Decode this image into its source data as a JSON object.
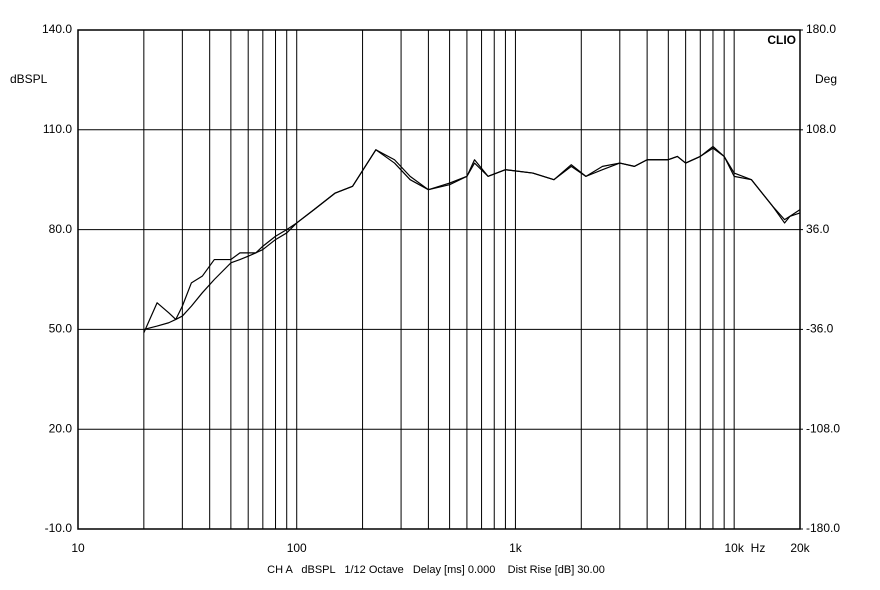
{
  "chart_data": {
    "type": "line",
    "y_label": "dBSPL",
    "y2_label": "Deg",
    "brand": "CLIO",
    "x_unit": "Hz",
    "footer": "CH A   dBSPL   1/12 Octave   Delay [ms] 0.000    Dist Rise [dB] 30.00",
    "log_x": true,
    "grid": true,
    "xlim": [
      10,
      20000
    ],
    "xticks": [
      {
        "value": 10,
        "label": "10"
      },
      {
        "value": 100,
        "label": "100"
      },
      {
        "value": 1000,
        "label": "1k"
      },
      {
        "value": 10000,
        "label": "10k"
      },
      {
        "value": 20000,
        "label": "20k"
      }
    ],
    "xgrid": [
      20,
      30,
      40,
      50,
      60,
      70,
      80,
      90,
      200,
      300,
      400,
      500,
      600,
      700,
      800,
      900,
      2000,
      3000,
      4000,
      5000,
      6000,
      7000,
      8000,
      9000
    ],
    "ylim": [
      -10,
      140
    ],
    "yticks": [
      {
        "value": -10,
        "label": "-10.0"
      },
      {
        "value": 20,
        "label": "20.0"
      },
      {
        "value": 50,
        "label": "50.0"
      },
      {
        "value": 80,
        "label": "80.0"
      },
      {
        "value": 110,
        "label": "110.0"
      },
      {
        "value": 140,
        "label": "140.0"
      }
    ],
    "y2lim": [
      -180,
      180
    ],
    "y2ticks": [
      {
        "value": -180,
        "label": "-180.0"
      },
      {
        "value": -108,
        "label": "-108.0"
      },
      {
        "value": -36,
        "label": "-36.0"
      },
      {
        "value": 36,
        "label": "36.0"
      },
      {
        "value": 108,
        "label": "108.0"
      },
      {
        "value": 180,
        "label": "180.0"
      }
    ],
    "x": [
      20,
      23,
      26,
      28,
      30,
      33,
      37,
      42,
      50,
      55,
      60,
      65,
      70,
      80,
      90,
      100,
      120,
      150,
      180,
      230,
      280,
      330,
      400,
      500,
      600,
      650,
      750,
      900,
      1200,
      1500,
      1800,
      2100,
      2500,
      3000,
      3500,
      4000,
      5000,
      5500,
      6000,
      7000,
      8000,
      9000,
      10000,
      12000,
      15000,
      17000,
      18000,
      20000
    ],
    "series": [
      {
        "color": "#000000",
        "values": [
          50,
          51,
          52,
          53,
          54,
          57,
          61,
          65,
          70,
          71,
          72,
          73,
          74,
          77,
          79,
          82,
          86,
          91,
          93,
          104,
          101,
          96,
          92,
          93.5,
          96,
          100,
          96,
          98,
          97,
          95,
          99,
          96,
          98,
          100,
          99,
          101,
          101,
          102,
          100,
          102,
          104.5,
          102,
          97,
          95,
          87,
          83,
          84,
          86
        ]
      },
      {
        "color": "#000000",
        "values": [
          49,
          58,
          55,
          53,
          57,
          64,
          66,
          71,
          71,
          73,
          73,
          73,
          75,
          78,
          80,
          82,
          86,
          91,
          93,
          104,
          100,
          95,
          92,
          94,
          96,
          101,
          96,
          98,
          97,
          95,
          99.5,
          96,
          99,
          100,
          99,
          101,
          101,
          102,
          100,
          102,
          105,
          102,
          96,
          95,
          87,
          82,
          84,
          85
        ]
      }
    ]
  }
}
